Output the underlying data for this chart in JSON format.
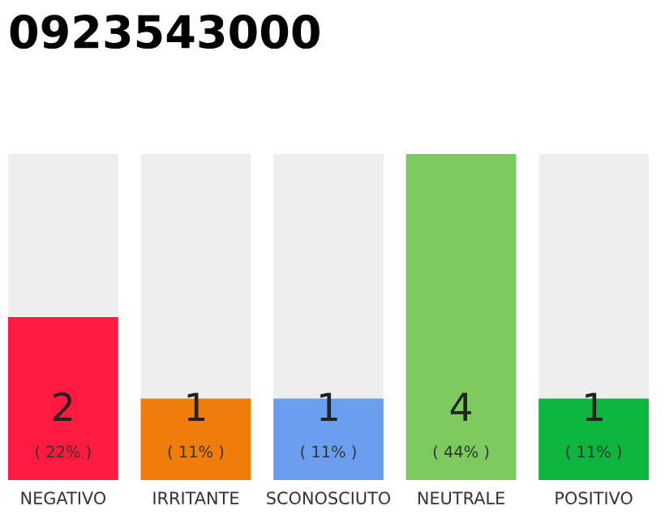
{
  "chart_data": {
    "type": "bar",
    "title": "0923543000",
    "categories": [
      "NEGATIVO",
      "IRRITANTE",
      "SCONOSCIUTO",
      "NEUTRALE",
      "POSITIVO"
    ],
    "values": [
      2,
      1,
      1,
      4,
      1
    ],
    "colors": [
      "#ff1a40",
      "#f07c0a",
      "#6a9ff0",
      "#7dcb5e",
      "#0db53f"
    ],
    "value_labels": [
      "2\n( 22% )",
      "1\n( 11% )",
      "1\n( 11% )",
      "4\n( 44% )",
      "1\n( 11% )"
    ],
    "tick_labels": "x",
    "grid": false,
    "legend": false
  }
}
